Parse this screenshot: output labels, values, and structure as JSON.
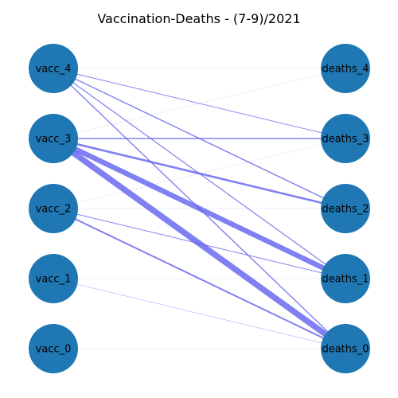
{
  "title": "Vaccination-Deaths - (7-9)/2021",
  "colors": {
    "node": "#1f77b4",
    "edge": "#5555ee",
    "label": "#000000",
    "background": "#ffffff"
  },
  "nodes": {
    "left": [
      "vacc_4",
      "vacc_3",
      "vacc_2",
      "vacc_1",
      "vacc_0"
    ],
    "right": [
      "deaths_4",
      "deaths_3",
      "deaths_2",
      "deaths_1",
      "deaths_0"
    ]
  },
  "edges": [
    {
      "source": "vacc_4",
      "target": "deaths_4",
      "weight": 0.1
    },
    {
      "source": "vacc_4",
      "target": "deaths_3",
      "weight": 0.9
    },
    {
      "source": "vacc_4",
      "target": "deaths_2",
      "weight": 1.4
    },
    {
      "source": "vacc_4",
      "target": "deaths_1",
      "weight": 1.2
    },
    {
      "source": "vacc_4",
      "target": "deaths_0",
      "weight": 1.4
    },
    {
      "source": "vacc_3",
      "target": "deaths_4",
      "weight": 0.15
    },
    {
      "source": "vacc_3",
      "target": "deaths_3",
      "weight": 1.4
    },
    {
      "source": "vacc_3",
      "target": "deaths_2",
      "weight": 2.6
    },
    {
      "source": "vacc_3",
      "target": "deaths_1",
      "weight": 6.5
    },
    {
      "source": "vacc_3",
      "target": "deaths_0",
      "weight": 7.5
    },
    {
      "source": "vacc_2",
      "target": "deaths_3",
      "weight": 0.12
    },
    {
      "source": "vacc_2",
      "target": "deaths_2",
      "weight": 0.12
    },
    {
      "source": "vacc_2",
      "target": "deaths_1",
      "weight": 1.0
    },
    {
      "source": "vacc_2",
      "target": "deaths_0",
      "weight": 2.0
    },
    {
      "source": "vacc_1",
      "target": "deaths_1",
      "weight": 0.1
    },
    {
      "source": "vacc_1",
      "target": "deaths_0",
      "weight": 0.4
    },
    {
      "source": "vacc_0",
      "target": "deaths_0",
      "weight": 0.1
    }
  ]
}
